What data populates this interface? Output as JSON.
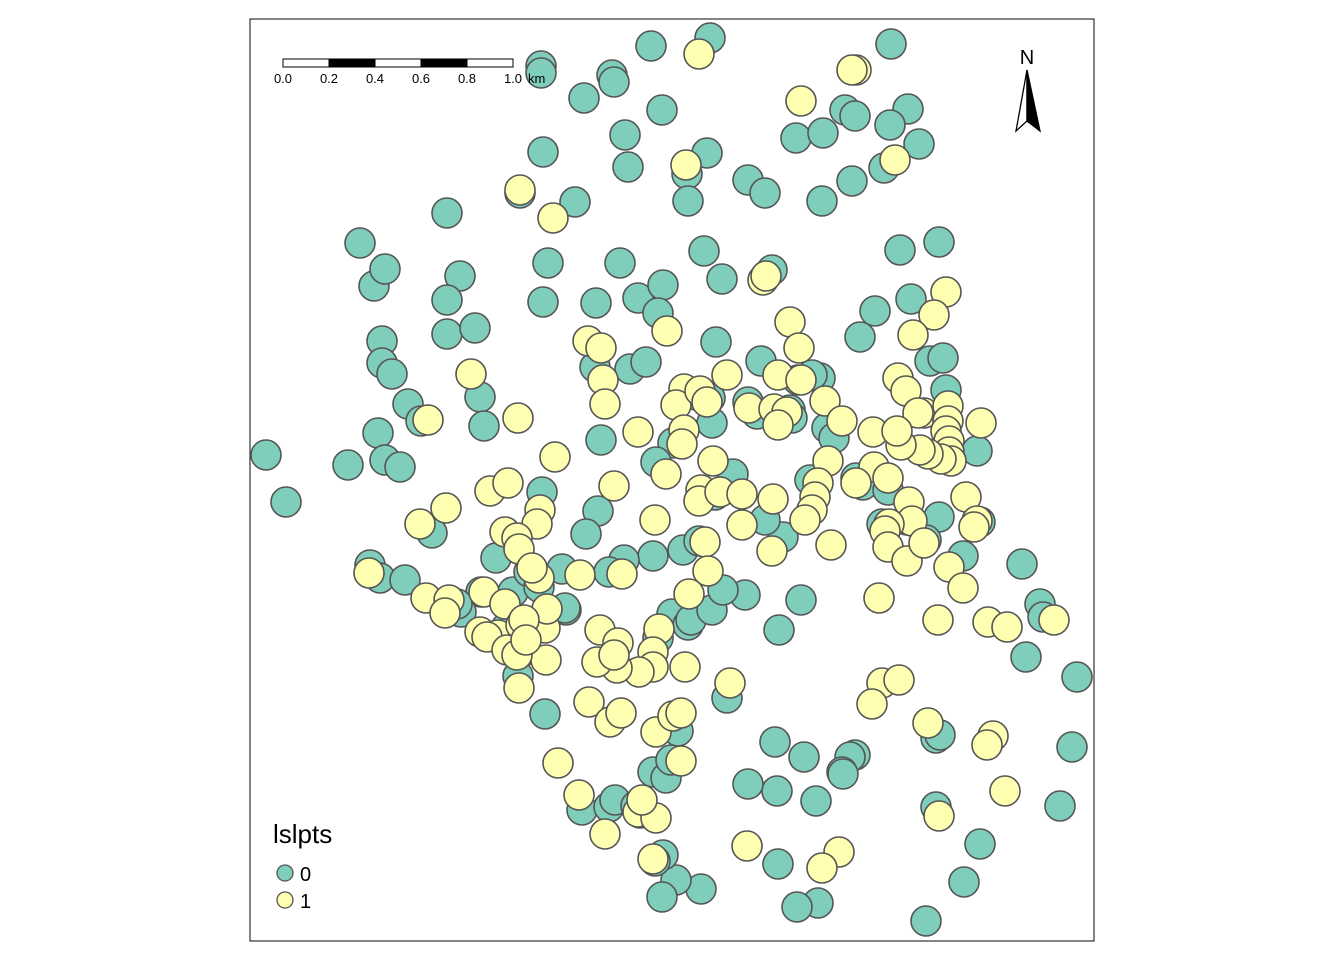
{
  "map": {
    "legend": {
      "title": "lslpts",
      "entries": [
        {
          "label": "0",
          "color": "#7fcdbb"
        },
        {
          "label": "1",
          "color": "#ffffb2"
        }
      ]
    },
    "north_arrow": {
      "label": "N"
    },
    "scale_bar": {
      "ticks": [
        "0.0",
        "0.2",
        "0.4",
        "0.6",
        "0.8",
        "1.0"
      ],
      "unit": "km"
    },
    "colors": {
      "class_0": "#7fcdbb",
      "class_1": "#ffffb2",
      "point_stroke": "#555555",
      "frame": "#333333"
    }
  },
  "points": {
    "class_0": [
      [
        266,
        455
      ],
      [
        286,
        502
      ],
      [
        348,
        465
      ],
      [
        360,
        243
      ],
      [
        374,
        286
      ],
      [
        385,
        269
      ],
      [
        382,
        341
      ],
      [
        382,
        363
      ],
      [
        392,
        374
      ],
      [
        408,
        404
      ],
      [
        421,
        421
      ],
      [
        378,
        433
      ],
      [
        385,
        460
      ],
      [
        400,
        467
      ],
      [
        432,
        533
      ],
      [
        370,
        565
      ],
      [
        380,
        578
      ],
      [
        405,
        580
      ],
      [
        447,
        213
      ],
      [
        460,
        276
      ],
      [
        447,
        300
      ],
      [
        447,
        334
      ],
      [
        475,
        328
      ],
      [
        480,
        397
      ],
      [
        484,
        426
      ],
      [
        541,
        66
      ],
      [
        541,
        73
      ],
      [
        543,
        152
      ],
      [
        575,
        202
      ],
      [
        548,
        263
      ],
      [
        543,
        302
      ],
      [
        520,
        193
      ],
      [
        584,
        98
      ],
      [
        612,
        75
      ],
      [
        614,
        82
      ],
      [
        625,
        135
      ],
      [
        628,
        167
      ],
      [
        651,
        46
      ],
      [
        662,
        110
      ],
      [
        710,
        38
      ],
      [
        707,
        153
      ],
      [
        687,
        174
      ],
      [
        688,
        201
      ],
      [
        620,
        263
      ],
      [
        638,
        298
      ],
      [
        663,
        285
      ],
      [
        658,
        313
      ],
      [
        704,
        251
      ],
      [
        722,
        279
      ],
      [
        596,
        303
      ],
      [
        595,
        367
      ],
      [
        630,
        369
      ],
      [
        646,
        362
      ],
      [
        601,
        440
      ],
      [
        598,
        511
      ],
      [
        586,
        534
      ],
      [
        716,
        342
      ],
      [
        761,
        361
      ],
      [
        772,
        270
      ],
      [
        748,
        180
      ],
      [
        765,
        193
      ],
      [
        796,
        138
      ],
      [
        823,
        133
      ],
      [
        845,
        110
      ],
      [
        855,
        116
      ],
      [
        891,
        44
      ],
      [
        908,
        109
      ],
      [
        890,
        125
      ],
      [
        919,
        144
      ],
      [
        884,
        168
      ],
      [
        852,
        181
      ],
      [
        822,
        201
      ],
      [
        900,
        250
      ],
      [
        939,
        242
      ],
      [
        911,
        299
      ],
      [
        875,
        311
      ],
      [
        860,
        337
      ],
      [
        930,
        361
      ],
      [
        943,
        358
      ],
      [
        946,
        390
      ],
      [
        977,
        451
      ],
      [
        980,
        522
      ],
      [
        963,
        556
      ],
      [
        939,
        517
      ],
      [
        1022,
        564
      ],
      [
        1040,
        604
      ],
      [
        1043,
        617
      ],
      [
        1026,
        657
      ],
      [
        1077,
        677
      ],
      [
        1072,
        747
      ],
      [
        1060,
        806
      ],
      [
        980,
        844
      ],
      [
        964,
        882
      ],
      [
        926,
        921
      ],
      [
        936,
        807
      ],
      [
        936,
        738
      ],
      [
        940,
        735
      ],
      [
        855,
        755
      ],
      [
        850,
        757
      ],
      [
        842,
        772
      ],
      [
        843,
        774
      ],
      [
        816,
        801
      ],
      [
        804,
        757
      ],
      [
        777,
        791
      ],
      [
        775,
        742
      ],
      [
        748,
        784
      ],
      [
        778,
        864
      ],
      [
        818,
        903
      ],
      [
        797,
        907
      ],
      [
        701,
        889
      ],
      [
        676,
        880
      ],
      [
        663,
        855
      ],
      [
        662,
        897
      ],
      [
        655,
        861
      ],
      [
        653,
        772
      ],
      [
        666,
        778
      ],
      [
        671,
        760
      ],
      [
        678,
        731
      ],
      [
        658,
        638
      ],
      [
        672,
        614
      ],
      [
        688,
        625
      ],
      [
        691,
        620
      ],
      [
        712,
        610
      ],
      [
        745,
        595
      ],
      [
        723,
        590
      ],
      [
        683,
        550
      ],
      [
        699,
        541
      ],
      [
        653,
        556
      ],
      [
        727,
        698
      ],
      [
        801,
        600
      ],
      [
        779,
        630
      ],
      [
        783,
        537
      ],
      [
        765,
        520
      ],
      [
        810,
        480
      ],
      [
        820,
        378
      ],
      [
        827,
        428
      ],
      [
        834,
        438
      ],
      [
        856,
        478
      ],
      [
        863,
        485
      ],
      [
        888,
        490
      ],
      [
        882,
        524
      ],
      [
        907,
        520
      ],
      [
        926,
        540
      ],
      [
        562,
        569
      ],
      [
        566,
        610
      ],
      [
        545,
        714
      ],
      [
        518,
        676
      ],
      [
        513,
        592
      ],
      [
        496,
        558
      ],
      [
        481,
        592
      ],
      [
        529,
        572
      ],
      [
        539,
        587
      ],
      [
        542,
        492
      ],
      [
        582,
        810
      ],
      [
        609,
        807
      ],
      [
        615,
        800
      ],
      [
        636,
        806
      ],
      [
        733,
        474
      ],
      [
        715,
        495
      ],
      [
        710,
        398
      ],
      [
        696,
        395
      ],
      [
        712,
        423
      ],
      [
        624,
        560
      ],
      [
        609,
        572
      ],
      [
        461,
        612
      ],
      [
        457,
        604
      ],
      [
        506,
        628
      ],
      [
        565,
        608
      ],
      [
        673,
        443
      ],
      [
        656,
        462
      ],
      [
        748,
        402
      ],
      [
        757,
        414
      ],
      [
        790,
        410
      ],
      [
        792,
        418
      ],
      [
        798,
        380
      ],
      [
        812,
        375
      ]
    ],
    "class_1": [
      [
        699,
        54
      ],
      [
        856,
        70
      ],
      [
        852,
        70
      ],
      [
        801,
        101
      ],
      [
        686,
        165
      ],
      [
        895,
        160
      ],
      [
        520,
        190
      ],
      [
        553,
        218
      ],
      [
        763,
        280
      ],
      [
        766,
        276
      ],
      [
        790,
        322
      ],
      [
        799,
        348
      ],
      [
        946,
        292
      ],
      [
        934,
        315
      ],
      [
        913,
        335
      ],
      [
        667,
        331
      ],
      [
        588,
        341
      ],
      [
        601,
        348
      ],
      [
        603,
        380
      ],
      [
        605,
        404
      ],
      [
        471,
        374
      ],
      [
        428,
        420
      ],
      [
        518,
        418
      ],
      [
        555,
        457
      ],
      [
        490,
        491
      ],
      [
        508,
        483
      ],
      [
        446,
        508
      ],
      [
        420,
        524
      ],
      [
        505,
        532
      ],
      [
        540,
        510
      ],
      [
        537,
        524
      ],
      [
        539,
        578
      ],
      [
        517,
        538
      ],
      [
        519,
        549
      ],
      [
        532,
        568
      ],
      [
        580,
        575
      ],
      [
        622,
        574
      ],
      [
        614,
        486
      ],
      [
        638,
        432
      ],
      [
        666,
        474
      ],
      [
        655,
        520
      ],
      [
        684,
        389
      ],
      [
        676,
        405
      ],
      [
        700,
        391
      ],
      [
        707,
        402
      ],
      [
        684,
        430
      ],
      [
        682,
        444
      ],
      [
        713,
        461
      ],
      [
        727,
        375
      ],
      [
        778,
        375
      ],
      [
        801,
        380
      ],
      [
        749,
        408
      ],
      [
        774,
        409
      ],
      [
        787,
        412
      ],
      [
        778,
        425
      ],
      [
        825,
        401
      ],
      [
        842,
        421
      ],
      [
        873,
        432
      ],
      [
        828,
        461
      ],
      [
        874,
        467
      ],
      [
        818,
        483
      ],
      [
        815,
        497
      ],
      [
        812,
        510
      ],
      [
        805,
        520
      ],
      [
        831,
        545
      ],
      [
        856,
        483
      ],
      [
        888,
        478
      ],
      [
        898,
        378
      ],
      [
        906,
        391
      ],
      [
        924,
        413
      ],
      [
        918,
        413
      ],
      [
        948,
        406
      ],
      [
        948,
        421
      ],
      [
        946,
        431
      ],
      [
        949,
        441
      ],
      [
        949,
        452
      ],
      [
        951,
        461
      ],
      [
        941,
        459
      ],
      [
        928,
        454
      ],
      [
        920,
        450
      ],
      [
        901,
        445
      ],
      [
        897,
        431
      ],
      [
        981,
        423
      ],
      [
        966,
        497
      ],
      [
        977,
        521
      ],
      [
        974,
        527
      ],
      [
        909,
        502
      ],
      [
        912,
        521
      ],
      [
        889,
        524
      ],
      [
        885,
        531
      ],
      [
        888,
        547
      ],
      [
        907,
        561
      ],
      [
        924,
        543
      ],
      [
        949,
        567
      ],
      [
        963,
        588
      ],
      [
        938,
        620
      ],
      [
        988,
        622
      ],
      [
        1007,
        627
      ],
      [
        1054,
        620
      ],
      [
        879,
        598
      ],
      [
        882,
        683
      ],
      [
        899,
        680
      ],
      [
        872,
        704
      ],
      [
        928,
        723
      ],
      [
        993,
        736
      ],
      [
        987,
        745
      ],
      [
        1005,
        791
      ],
      [
        939,
        816
      ],
      [
        839,
        852
      ],
      [
        822,
        868
      ],
      [
        747,
        846
      ],
      [
        701,
        490
      ],
      [
        699,
        501
      ],
      [
        720,
        492
      ],
      [
        742,
        494
      ],
      [
        742,
        525
      ],
      [
        773,
        499
      ],
      [
        772,
        551
      ],
      [
        705,
        542
      ],
      [
        708,
        571
      ],
      [
        689,
        594
      ],
      [
        685,
        667
      ],
      [
        730,
        683
      ],
      [
        659,
        629
      ],
      [
        653,
        652
      ],
      [
        653,
        667
      ],
      [
        639,
        672
      ],
      [
        617,
        668
      ],
      [
        597,
        662
      ],
      [
        600,
        630
      ],
      [
        618,
        643
      ],
      [
        614,
        655
      ],
      [
        589,
        702
      ],
      [
        610,
        722
      ],
      [
        621,
        713
      ],
      [
        656,
        732
      ],
      [
        673,
        716
      ],
      [
        681,
        713
      ],
      [
        681,
        761
      ],
      [
        558,
        763
      ],
      [
        579,
        795
      ],
      [
        605,
        834
      ],
      [
        640,
        813
      ],
      [
        638,
        812
      ],
      [
        656,
        818
      ],
      [
        642,
        800
      ],
      [
        653,
        859
      ],
      [
        426,
        598
      ],
      [
        449,
        600
      ],
      [
        445,
        613
      ],
      [
        484,
        592
      ],
      [
        480,
        632
      ],
      [
        498,
        635
      ],
      [
        487,
        637
      ],
      [
        505,
        604
      ],
      [
        521,
        625
      ],
      [
        507,
        650
      ],
      [
        526,
        650
      ],
      [
        519,
        688
      ],
      [
        546,
        660
      ],
      [
        545,
        628
      ],
      [
        547,
        609
      ],
      [
        524,
        620
      ],
      [
        369,
        573
      ],
      [
        517,
        655
      ],
      [
        526,
        640
      ]
    ]
  }
}
